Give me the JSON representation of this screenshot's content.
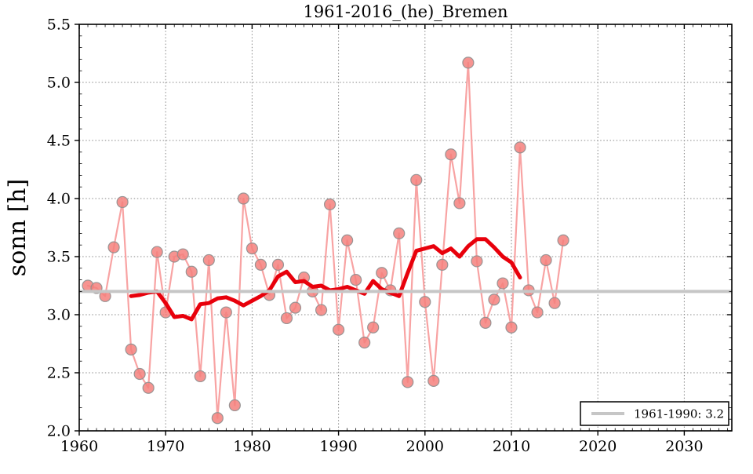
{
  "window": {
    "kind": "matplotlib-figure"
  },
  "chart_data": {
    "type": "line",
    "title": "1961-2016_(he)_Bremen",
    "xlabel": "",
    "ylabel": "sonn [h]",
    "xlim": [
      1960,
      2035.5
    ],
    "ylim": [
      2.0,
      5.5
    ],
    "grid": true,
    "xticks": [
      "1960",
      "1970",
      "1980",
      "1990",
      "2000",
      "2010",
      "2020",
      "2030"
    ],
    "yticks": [
      "2.0",
      "2.5",
      "3.0",
      "3.5",
      "4.0",
      "4.5",
      "5.0",
      "5.5"
    ],
    "legend": {
      "position": "lower right",
      "label": "1961-1990: 3.2"
    },
    "colors": {
      "annual_line": "#f8a3a3",
      "marker_fill": "#f5807d",
      "marker_edge": "#8f8f8f",
      "running_mean": "#e8000b",
      "reference": "#c6c6c6",
      "grid": "#888888",
      "spine": "#000000"
    },
    "series": [
      {
        "name": "annual sunshine hours",
        "role": "annual",
        "marker": true,
        "x": [
          1961,
          1962,
          1963,
          1964,
          1965,
          1966,
          1967,
          1968,
          1969,
          1970,
          1971,
          1972,
          1973,
          1974,
          1975,
          1976,
          1977,
          1978,
          1979,
          1980,
          1981,
          1982,
          1983,
          1984,
          1985,
          1986,
          1987,
          1988,
          1989,
          1990,
          1991,
          1992,
          1993,
          1994,
          1995,
          1996,
          1997,
          1998,
          1999,
          2000,
          2001,
          2002,
          2003,
          2004,
          2005,
          2006,
          2007,
          2008,
          2009,
          2010,
          2011,
          2012,
          2013,
          2014,
          2015,
          2016
        ],
        "values": [
          3.25,
          3.23,
          3.16,
          3.58,
          3.97,
          2.7,
          2.49,
          2.37,
          3.54,
          3.02,
          3.5,
          3.52,
          3.37,
          2.47,
          3.47,
          2.11,
          3.02,
          2.22,
          4.0,
          3.57,
          3.43,
          3.17,
          3.43,
          2.97,
          3.06,
          3.32,
          3.2,
          3.04,
          3.95,
          2.87,
          3.64,
          3.3,
          2.76,
          2.89,
          3.36,
          3.21,
          3.7,
          2.42,
          4.16,
          3.11,
          2.43,
          3.43,
          4.38,
          3.96,
          5.17,
          3.46,
          2.93,
          3.13,
          3.27,
          2.89,
          4.44,
          3.21,
          3.02,
          3.47,
          3.1,
          3.64
        ]
      },
      {
        "name": "running mean",
        "role": "mean",
        "marker": false,
        "x": [
          1966,
          1967,
          1968,
          1969,
          1970,
          1971,
          1972,
          1973,
          1974,
          1975,
          1976,
          1977,
          1978,
          1979,
          1980,
          1981,
          1982,
          1983,
          1984,
          1985,
          1986,
          1987,
          1988,
          1989,
          1990,
          1991,
          1992,
          1993,
          1994,
          1995,
          1996,
          1997,
          1998,
          1999,
          2000,
          2001,
          2002,
          2003,
          2004,
          2005,
          2006,
          2007,
          2008,
          2009,
          2010,
          2011
        ],
        "values": [
          3.16,
          3.17,
          3.19,
          3.2,
          3.1,
          2.98,
          2.99,
          2.96,
          3.09,
          3.1,
          3.14,
          3.15,
          3.12,
          3.08,
          3.12,
          3.16,
          3.21,
          3.33,
          3.37,
          3.28,
          3.29,
          3.24,
          3.25,
          3.21,
          3.22,
          3.24,
          3.21,
          3.18,
          3.29,
          3.22,
          3.19,
          3.16,
          3.36,
          3.55,
          3.57,
          3.59,
          3.53,
          3.57,
          3.5,
          3.59,
          3.65,
          3.65,
          3.58,
          3.5,
          3.45,
          3.32
        ]
      },
      {
        "name": "1961-1990 reference",
        "role": "hline",
        "value": 3.2
      }
    ]
  }
}
